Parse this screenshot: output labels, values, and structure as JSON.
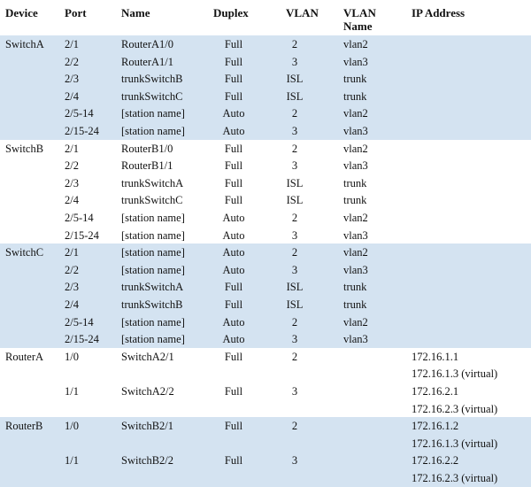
{
  "colors": {
    "band": "#d4e3f1",
    "band_alt": "#ffffff",
    "text": "#111111"
  },
  "headers": {
    "device": "Device",
    "port": "Port",
    "name": "Name",
    "duplex": "Duplex",
    "vlan": "VLAN",
    "vlan_name_1": "VLAN",
    "vlan_name_2": "Name",
    "ip": "IP Address"
  },
  "groups": [
    {
      "device": "SwitchA",
      "rows": [
        {
          "port": "2/1",
          "name": "RouterA1/0",
          "duplex": "Full",
          "vlan": "2",
          "vlan_name": "vlan2",
          "ip": ""
        },
        {
          "port": "2/2",
          "name": "RouterA1/1",
          "duplex": "Full",
          "vlan": "3",
          "vlan_name": "vlan3",
          "ip": ""
        },
        {
          "port": "2/3",
          "name": "trunkSwitchB",
          "duplex": "Full",
          "vlan": "ISL",
          "vlan_name": "trunk",
          "ip": ""
        },
        {
          "port": "2/4",
          "name": "trunkSwitchC",
          "duplex": "Full",
          "vlan": "ISL",
          "vlan_name": "trunk",
          "ip": ""
        },
        {
          "port": "2/5-14",
          "name": "[station name]",
          "duplex": "Auto",
          "vlan": "2",
          "vlan_name": "vlan2",
          "ip": ""
        },
        {
          "port": "2/15-24",
          "name": "[station name]",
          "duplex": "Auto",
          "vlan": "3",
          "vlan_name": "vlan3",
          "ip": ""
        }
      ]
    },
    {
      "device": "SwitchB",
      "rows": [
        {
          "port": "2/1",
          "name": "RouterB1/0",
          "duplex": "Full",
          "vlan": "2",
          "vlan_name": "vlan2",
          "ip": ""
        },
        {
          "port": "2/2",
          "name": "RouterB1/1",
          "duplex": "Full",
          "vlan": "3",
          "vlan_name": "vlan3",
          "ip": ""
        },
        {
          "port": "2/3",
          "name": "trunkSwitchA",
          "duplex": "Full",
          "vlan": "ISL",
          "vlan_name": "trunk",
          "ip": ""
        },
        {
          "port": "2/4",
          "name": "trunkSwitchC",
          "duplex": "Full",
          "vlan": "ISL",
          "vlan_name": "trunk",
          "ip": ""
        },
        {
          "port": "2/5-14",
          "name": "[station name]",
          "duplex": "Auto",
          "vlan": "2",
          "vlan_name": "vlan2",
          "ip": ""
        },
        {
          "port": "2/15-24",
          "name": "[station name]",
          "duplex": "Auto",
          "vlan": "3",
          "vlan_name": "vlan3",
          "ip": ""
        }
      ]
    },
    {
      "device": "SwitchC",
      "rows": [
        {
          "port": "2/1",
          "name": "[station name]",
          "duplex": "Auto",
          "vlan": "2",
          "vlan_name": "vlan2",
          "ip": ""
        },
        {
          "port": "2/2",
          "name": "[station name]",
          "duplex": "Auto",
          "vlan": "3",
          "vlan_name": "vlan3",
          "ip": ""
        },
        {
          "port": "2/3",
          "name": "trunkSwitchA",
          "duplex": "Full",
          "vlan": "ISL",
          "vlan_name": "trunk",
          "ip": ""
        },
        {
          "port": "2/4",
          "name": "trunkSwitchB",
          "duplex": "Full",
          "vlan": "ISL",
          "vlan_name": "trunk",
          "ip": ""
        },
        {
          "port": "2/5-14",
          "name": "[station name]",
          "duplex": "Auto",
          "vlan": "2",
          "vlan_name": "vlan2",
          "ip": ""
        },
        {
          "port": "2/15-24",
          "name": "[station name]",
          "duplex": "Auto",
          "vlan": "3",
          "vlan_name": "vlan3",
          "ip": ""
        }
      ]
    },
    {
      "device": "RouterA",
      "rows": [
        {
          "port": "1/0",
          "name": "SwitchA2/1",
          "duplex": "Full",
          "vlan": "2",
          "vlan_name": "",
          "ip": "172.16.1.1"
        },
        {
          "port": "",
          "name": "",
          "duplex": "",
          "vlan": "",
          "vlan_name": "",
          "ip": "172.16.1.3 (virtual)"
        },
        {
          "port": "1/1",
          "name": "SwitchA2/2",
          "duplex": "Full",
          "vlan": "3",
          "vlan_name": "",
          "ip": "172.16.2.1"
        },
        {
          "port": "",
          "name": "",
          "duplex": "",
          "vlan": "",
          "vlan_name": "",
          "ip": "172.16.2.3 (virtual)"
        }
      ]
    },
    {
      "device": "RouterB",
      "rows": [
        {
          "port": "1/0",
          "name": "SwitchB2/1",
          "duplex": "Full",
          "vlan": "2",
          "vlan_name": "",
          "ip": "172.16.1.2"
        },
        {
          "port": "",
          "name": "",
          "duplex": "",
          "vlan": "",
          "vlan_name": "",
          "ip": "172.16.1.3 (virtual)"
        },
        {
          "port": "1/1",
          "name": "SwitchB2/2",
          "duplex": "Full",
          "vlan": "3",
          "vlan_name": "",
          "ip": "172.16.2.2"
        },
        {
          "port": "",
          "name": "",
          "duplex": "",
          "vlan": "",
          "vlan_name": "",
          "ip": "172.16.2.3 (virtual)"
        }
      ]
    }
  ]
}
